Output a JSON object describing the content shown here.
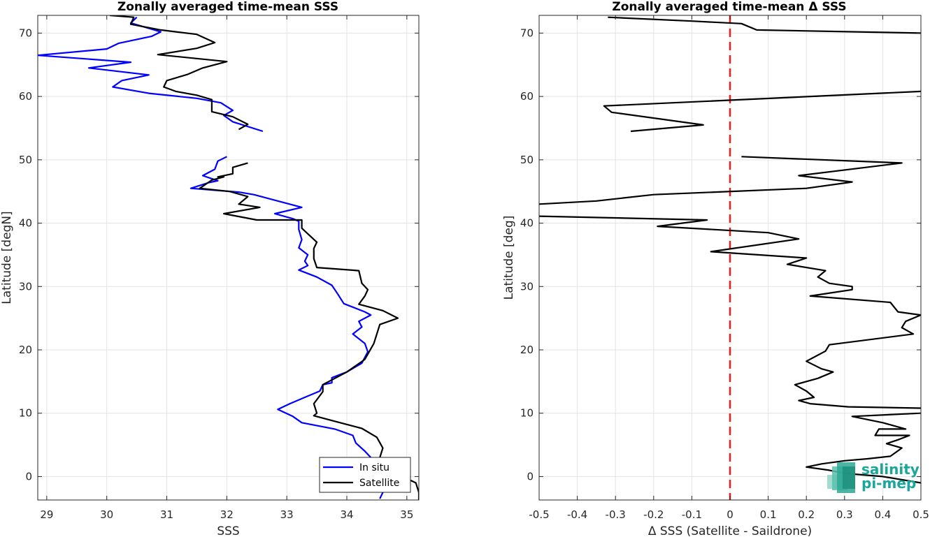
{
  "chart_data": [
    {
      "type": "line",
      "title": "Zonally averaged time-mean SSS",
      "xlabel": "SSS",
      "ylabel": "Latitude [degN]",
      "xlim": [
        28.85,
        35.2
      ],
      "ylim": [
        -3.7,
        72.8
      ],
      "xticks": [
        29,
        30,
        31,
        32,
        33,
        34,
        35
      ],
      "yticks": [
        0,
        10,
        20,
        30,
        40,
        50,
        60,
        70
      ],
      "grid": true,
      "legend_position": "bottom-right",
      "series": [
        {
          "name": "In situ",
          "color": "#0000ff",
          "segments": [
            [
              [
                30.5,
                72.5
              ],
              [
                30.4,
                71.6
              ],
              [
                30.9,
                70.2
              ],
              [
                30.75,
                69.5
              ],
              [
                30.2,
                68.4
              ],
              [
                30,
                67.5
              ],
              [
                28.85,
                66.5
              ],
              [
                30.4,
                65.4
              ],
              [
                29.7,
                64.5
              ],
              [
                30.7,
                63.4
              ],
              [
                30.25,
                62.5
              ],
              [
                30.1,
                61.5
              ],
              [
                30.7,
                60.5
              ],
              [
                31.5,
                59.7
              ],
              [
                31.9,
                59
              ],
              [
                32.1,
                57.8
              ],
              [
                31.95,
                57
              ],
              [
                32.1,
                56
              ],
              [
                32.6,
                54.5
              ]
            ],
            [
              [
                32,
                50.5
              ],
              [
                31.85,
                49.8
              ],
              [
                31.8,
                48.5
              ],
              [
                31.6,
                47.5
              ],
              [
                31.85,
                46.7
              ],
              [
                31.7,
                46.4
              ],
              [
                31.4,
                45.5
              ],
              [
                32.2,
                44.9
              ],
              [
                32.45,
                44.5
              ],
              [
                33.25,
                42.5
              ],
              [
                32.8,
                41.5
              ],
              [
                33.1,
                40.7
              ],
              [
                33.2,
                40.3
              ],
              [
                33.2,
                39
              ],
              [
                33.25,
                37.4
              ],
              [
                33.2,
                36.1
              ],
              [
                33.35,
                35
              ],
              [
                33.3,
                34
              ],
              [
                33.35,
                33.3
              ],
              [
                33.2,
                32.6
              ],
              [
                33.5,
                31.5
              ],
              [
                33.75,
                30.2
              ],
              [
                33.85,
                28.8
              ],
              [
                33.95,
                27.3
              ],
              [
                34.3,
                26
              ],
              [
                34.4,
                25.5
              ],
              [
                34.2,
                24.5
              ],
              [
                34.25,
                23.6
              ],
              [
                34.1,
                22.5
              ],
              [
                34.3,
                21
              ],
              [
                34.35,
                19.7
              ],
              [
                34.25,
                17.9
              ],
              [
                34,
                16.5
              ],
              [
                33.75,
                15.6
              ],
              [
                33.75,
                14.8
              ],
              [
                33.6,
                14.5
              ],
              [
                33.55,
                13.5
              ],
              [
                33.3,
                12.5
              ],
              [
                33.05,
                11.5
              ],
              [
                32.85,
                10.6
              ],
              [
                33.1,
                9.5
              ],
              [
                33.25,
                8.5
              ],
              [
                33.8,
                7.5
              ],
              [
                34.1,
                6.5
              ],
              [
                34.15,
                5.3
              ],
              [
                34.3,
                4
              ],
              [
                34.45,
                2.5
              ],
              [
                34.5,
                1
              ],
              [
                34.55,
                -0.5
              ],
              [
                34.5,
                -1.5
              ],
              [
                34.6,
                -2.5
              ],
              [
                34.55,
                -3.5
              ]
            ]
          ]
        },
        {
          "name": "Satellite",
          "color": "#000000",
          "segments": [
            [
              [
                30.05,
                72.8
              ],
              [
                30.45,
                72.5
              ],
              [
                30.4,
                71.4
              ],
              [
                30.9,
                70.5
              ],
              [
                31.5,
                69.8
              ],
              [
                31.8,
                68.5
              ],
              [
                31.5,
                67.6
              ],
              [
                30.85,
                66.6
              ],
              [
                32,
                65.5
              ],
              [
                31.6,
                64.5
              ],
              [
                31.35,
                63.5
              ],
              [
                31,
                62.5
              ],
              [
                30.95,
                61.5
              ],
              [
                31.15,
                60.8
              ],
              [
                31.5,
                60.2
              ],
              [
                31.75,
                59.5
              ],
              [
                31.75,
                57.6
              ],
              [
                32.1,
                56.8
              ],
              [
                32.35,
                55.6
              ],
              [
                32.2,
                54.8
              ]
            ],
            [
              [
                32.35,
                49.5
              ],
              [
                32.1,
                48.8
              ],
              [
                32.1,
                47.8
              ],
              [
                31.85,
                47.3
              ],
              [
                31.95,
                47.3
              ],
              [
                31.75,
                46.8
              ],
              [
                31.55,
                45.5
              ],
              [
                32.05,
                45
              ],
              [
                32.35,
                44.2
              ],
              [
                32.2,
                43
              ],
              [
                32.55,
                42.5
              ],
              [
                31.95,
                41.5
              ],
              [
                32.5,
                40.5
              ],
              [
                33.25,
                40.5
              ],
              [
                33.25,
                39.2
              ],
              [
                33.5,
                37
              ],
              [
                33.45,
                36
              ],
              [
                33.45,
                34.4
              ],
              [
                33.5,
                33
              ],
              [
                34.2,
                32.5
              ],
              [
                34.25,
                30.5
              ],
              [
                34.35,
                29.5
              ],
              [
                34.3,
                28.5
              ],
              [
                34.2,
                27.2
              ],
              [
                34.6,
                26.2
              ],
              [
                34.85,
                25
              ],
              [
                34.55,
                24
              ],
              [
                34.5,
                22.5
              ],
              [
                34.45,
                21
              ],
              [
                34.3,
                18.5
              ],
              [
                34,
                16.5
              ],
              [
                33.8,
                15.5
              ],
              [
                33.6,
                14.5
              ],
              [
                33.6,
                13.4
              ],
              [
                33.45,
                11.5
              ],
              [
                33.5,
                10
              ],
              [
                33.45,
                9.6
              ],
              [
                33.85,
                8.6
              ],
              [
                34.25,
                7.6
              ],
              [
                34.5,
                6.2
              ],
              [
                34.6,
                4.5
              ],
              [
                34.55,
                3
              ],
              [
                34.6,
                1.5
              ],
              [
                35.15,
                -1
              ],
              [
                35.2,
                -2.5
              ],
              [
                35.2,
                -3.7
              ]
            ]
          ]
        }
      ]
    },
    {
      "type": "line",
      "title": "Zonally averaged time-mean Δ SSS",
      "xlabel": "Δ SSS (Satellite - Saildrone)",
      "ylabel": "Latitude [deg]",
      "xlim": [
        -0.5,
        0.5
      ],
      "ylim": [
        -3.7,
        72.8
      ],
      "xticks": [
        -0.5,
        -0.4,
        -0.3,
        -0.2,
        -0.1,
        0,
        0.1,
        0.2,
        0.3,
        0.4,
        0.5
      ],
      "yticks": [
        0,
        10,
        20,
        30,
        40,
        50,
        60,
        70
      ],
      "grid": true,
      "reference_line": {
        "x": 0,
        "color": "#ee1c1c",
        "style": "dashed"
      },
      "series": [
        {
          "color": "#000000",
          "segments": [
            [
              [
                -0.32,
                72.5
              ],
              [
                -0.1,
                71.9
              ],
              [
                0.03,
                71.5
              ],
              [
                0.07,
                70.5
              ],
              [
                0.5,
                70
              ]
            ],
            [
              [
                0.5,
                60.8
              ],
              [
                -0.33,
                58.5
              ],
              [
                -0.31,
                57.5
              ],
              [
                -0.07,
                55.5
              ],
              [
                -0.26,
                54.5
              ]
            ],
            [
              [
                0.03,
                50.5
              ],
              [
                0.45,
                49.5
              ],
              [
                0.18,
                47.5
              ],
              [
                0.32,
                46.5
              ],
              [
                0.2,
                45.5
              ],
              [
                -0.2,
                44.5
              ],
              [
                -0.35,
                43.5
              ],
              [
                -0.5,
                43
              ]
            ],
            [
              [
                -0.5,
                41.1
              ],
              [
                -0.06,
                40.5
              ],
              [
                -0.19,
                39.5
              ],
              [
                0.1,
                38.5
              ],
              [
                0.18,
                37.5
              ],
              [
                -0.05,
                35.5
              ],
              [
                0.2,
                34.5
              ],
              [
                0.15,
                33.5
              ],
              [
                0.25,
                32.5
              ],
              [
                0.23,
                31.5
              ],
              [
                0.26,
                30.5
              ],
              [
                0.32,
                30
              ],
              [
                0.32,
                29.5
              ],
              [
                0.21,
                28.5
              ],
              [
                0.42,
                27.5
              ],
              [
                0.44,
                26
              ],
              [
                0.5,
                25.5
              ],
              [
                0.46,
                24.5
              ],
              [
                0.45,
                23.5
              ],
              [
                0.48,
                22.5
              ],
              [
                0.26,
                20.8
              ],
              [
                0.25,
                19.8
              ],
              [
                0.2,
                18.2
              ],
              [
                0.24,
                17
              ],
              [
                0.27,
                16.5
              ],
              [
                0.23,
                15.5
              ],
              [
                0.17,
                14.5
              ],
              [
                0.2,
                13.5
              ],
              [
                0.22,
                12.5
              ],
              [
                0.18,
                12
              ],
              [
                0.21,
                11.5
              ],
              [
                0.31,
                11
              ],
              [
                0.5,
                10.8
              ]
            ],
            [
              [
                0.5,
                10
              ],
              [
                0.32,
                9.5
              ],
              [
                0.4,
                8.5
              ],
              [
                0.46,
                7.5
              ],
              [
                0.39,
                7.5
              ],
              [
                0.38,
                6.5
              ],
              [
                0.47,
                6.5
              ],
              [
                0.44,
                5.8
              ],
              [
                0.41,
                5.2
              ],
              [
                0.45,
                4.5
              ],
              [
                0.42,
                3.2
              ],
              [
                0.36,
                2.8
              ],
              [
                0.3,
                2.5
              ],
              [
                0.24,
                2
              ],
              [
                0.2,
                1.5
              ],
              [
                0.26,
                1
              ],
              [
                0.3,
                0.5
              ],
              [
                0.4,
                0
              ],
              [
                0.5,
                -1
              ]
            ]
          ]
        }
      ]
    }
  ],
  "logo": {
    "line1": "salinity",
    "line2": "pi-mep"
  }
}
